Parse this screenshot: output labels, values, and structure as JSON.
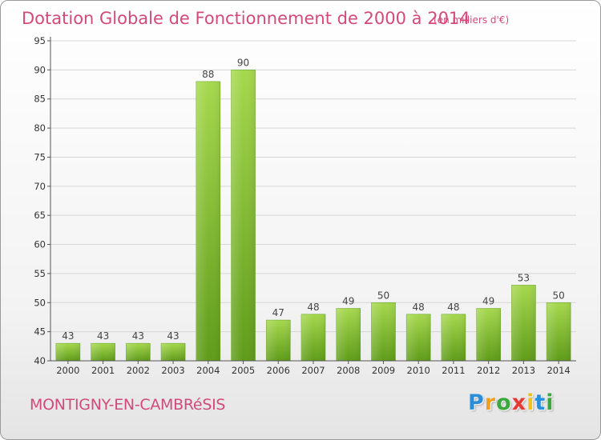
{
  "chart_data": {
    "type": "bar",
    "title": "Dotation Globale de Fonctionnement de 2000 à 2014",
    "subtitle": "(en milliers d'€)",
    "categories": [
      "2000",
      "2001",
      "2002",
      "2003",
      "2004",
      "2005",
      "2006",
      "2007",
      "2008",
      "2009",
      "2010",
      "2011",
      "2012",
      "2013",
      "2014"
    ],
    "values": [
      43,
      43,
      43,
      43,
      88,
      90,
      47,
      48,
      49,
      50,
      48,
      48,
      49,
      53,
      50
    ],
    "ylim": [
      40,
      95
    ],
    "yticks": [
      40,
      45,
      50,
      55,
      60,
      65,
      70,
      75,
      80,
      85,
      90,
      95
    ],
    "xlabel": "",
    "ylabel": "",
    "grid": true,
    "colors": {
      "bar_light": "#9fd24a",
      "bar_dark": "#5f9e1a",
      "title": "#d24a7a"
    }
  },
  "footer": {
    "commune": "MONTIGNY-EN-CAMBRéSIS",
    "logo_letters": [
      "P",
      "r",
      "o",
      "x",
      "i",
      "t",
      "i"
    ],
    "logo_colors": [
      "#2b8fd8",
      "#f0a020",
      "#3aa83a",
      "#e53935",
      "#f0c020",
      "#2b8fd8",
      "#3aa83a"
    ]
  }
}
